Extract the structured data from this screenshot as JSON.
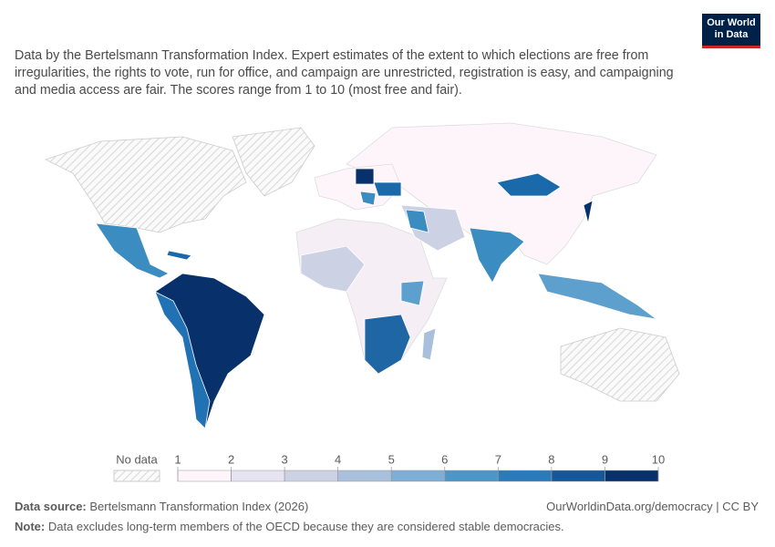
{
  "header": {
    "logo_line1": "Our World",
    "logo_line2": "in Data",
    "subtitle": "Data by the Bertelsmann Transformation Index. Expert estimates of the extent to which elections are free from irregularities, the rights to vote, run for office, and campaign are unrestricted, registration is easy, and campaigning and media access are fair. The scores range from 1 to 10 (most free and fair)."
  },
  "legend": {
    "no_data_label": "No data",
    "ticks": [
      1,
      2,
      3,
      4,
      5,
      6,
      7,
      8,
      9,
      10
    ],
    "colors": [
      "#fdf5fa",
      "#e6e3f0",
      "#cdd1e4",
      "#a9c0dc",
      "#7eaed3",
      "#4d96c8",
      "#2b7bba",
      "#14589a",
      "#08306b"
    ]
  },
  "footer": {
    "source_label": "Data source:",
    "source": "Bertelsmann Transformation Index (2026)",
    "url": "OurWorldinData.org/democracy | CC BY",
    "note_label": "Note:",
    "note": "Data excludes long-term members of the OECD because they are considered stable democracies."
  }
}
